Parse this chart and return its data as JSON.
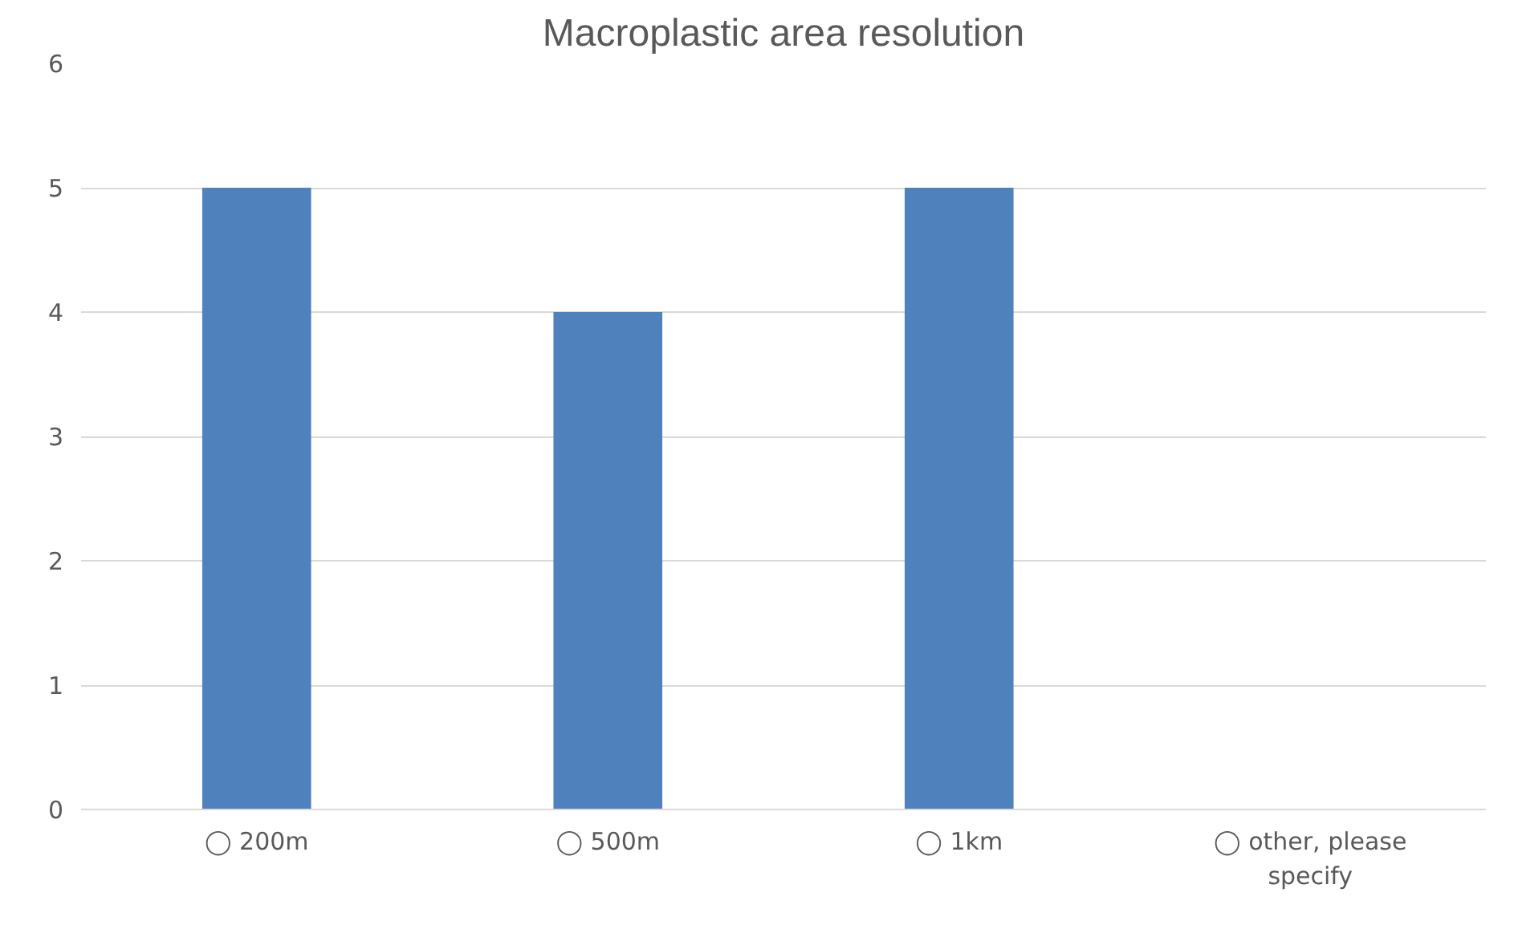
{
  "chart_data": {
    "type": "bar",
    "title": "Macroplastic area resolution",
    "categories": [
      "◯ 200m",
      "◯ 500m",
      "◯ 1km",
      "◯ other, please specify"
    ],
    "values": [
      5,
      4,
      5,
      0
    ],
    "color": "#4f81bd",
    "ylim": [
      0,
      6
    ],
    "yticks": [
      0,
      1,
      2,
      3,
      4,
      5,
      6
    ],
    "grid": "y"
  }
}
